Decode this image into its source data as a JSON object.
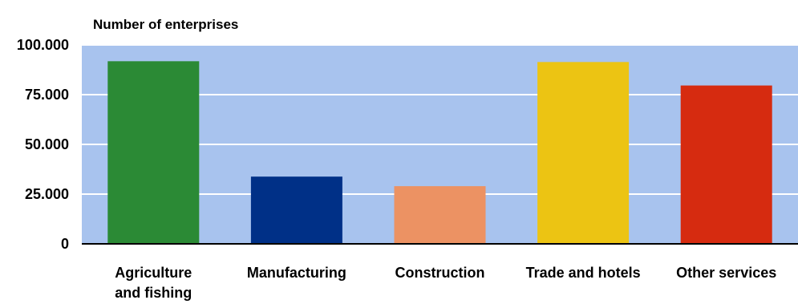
{
  "chart_data": {
    "type": "bar",
    "title": "",
    "xlabel": "",
    "ylabel": "Number of enterprises",
    "categories": [
      [
        "Agriculture",
        "and fishing"
      ],
      [
        "Manufacturing"
      ],
      [
        "Construction"
      ],
      [
        "Trade and hotels"
      ],
      [
        "Other services"
      ]
    ],
    "values": [
      91800,
      33800,
      29000,
      91400,
      79600
    ],
    "bar_colors": [
      "#2b8a35",
      "#003087",
      "#ec9263",
      "#ecc413",
      "#d62b10"
    ],
    "ylim": [
      0,
      100000
    ],
    "yticks": [
      0,
      25000,
      50000,
      75000,
      100000
    ],
    "ytick_labels": [
      "0",
      "25.000",
      "50.000",
      "75.000",
      "100.000"
    ],
    "plot_background": "#a8c3ee",
    "grid": true,
    "grid_color": "#ffffff",
    "legend": "none"
  }
}
